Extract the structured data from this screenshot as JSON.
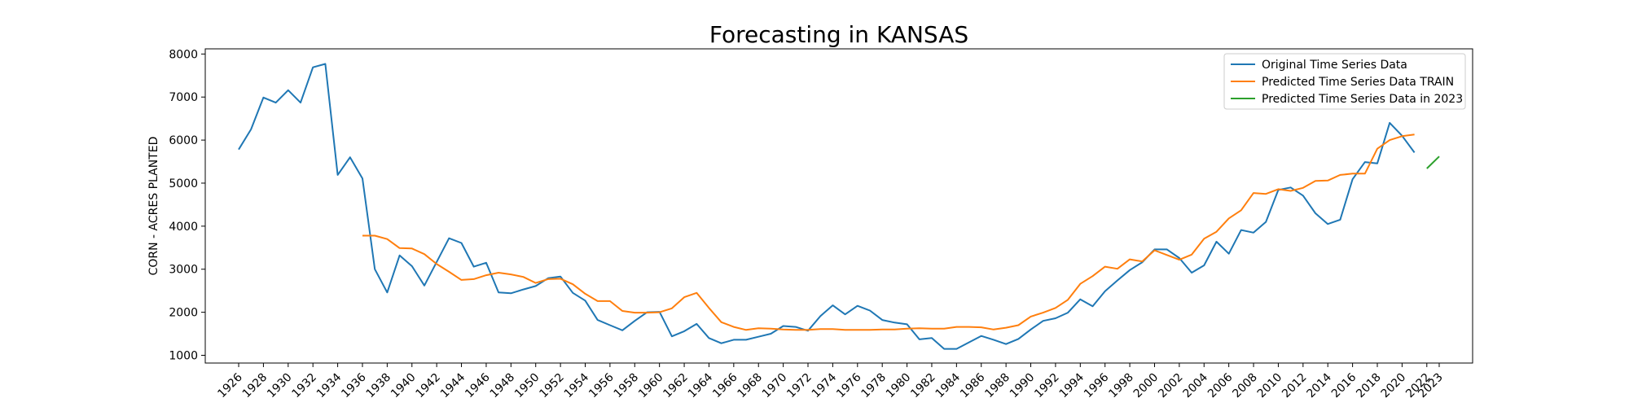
{
  "chart_data": {
    "type": "line",
    "title": "Forecasting in KANSAS",
    "xlabel": "",
    "ylabel": "CORN - ACRES PLANTED",
    "xlim": [
      1923.3,
      2025.7
    ],
    "ylim": [
      820,
      8120
    ],
    "yticks": [
      1000,
      2000,
      3000,
      4000,
      5000,
      6000,
      7000,
      8000
    ],
    "xticks": [
      "1926",
      "1928",
      "1930",
      "1932",
      "1934",
      "1936",
      "1938",
      "1940",
      "1942",
      "1944",
      "1946",
      "1948",
      "1950",
      "1952",
      "1954",
      "1956",
      "1958",
      "1960",
      "1962",
      "1964",
      "1966",
      "1968",
      "1970",
      "1972",
      "1974",
      "1976",
      "1978",
      "1980",
      "1982",
      "1984",
      "1986",
      "1988",
      "1990",
      "1992",
      "1994",
      "1996",
      "1998",
      "2000",
      "2002",
      "2004",
      "2006",
      "2008",
      "2010",
      "2012",
      "2014",
      "2016",
      "2018",
      "2020",
      "2022",
      "2023"
    ],
    "legend_position": "top-right",
    "grid": false,
    "series": [
      {
        "name": "Original Time Series Data",
        "color": "#1f77b4",
        "x": [
          1926,
          1927,
          1928,
          1929,
          1930,
          1931,
          1932,
          1933,
          1934,
          1935,
          1936,
          1937,
          1938,
          1939,
          1940,
          1941,
          1942,
          1943,
          1944,
          1945,
          1946,
          1947,
          1948,
          1949,
          1950,
          1951,
          1952,
          1953,
          1954,
          1955,
          1956,
          1957,
          1958,
          1959,
          1960,
          1961,
          1962,
          1963,
          1964,
          1965,
          1966,
          1967,
          1968,
          1969,
          1970,
          1971,
          1972,
          1973,
          1974,
          1975,
          1976,
          1977,
          1978,
          1979,
          1980,
          1981,
          1982,
          1983,
          1984,
          1985,
          1986,
          1987,
          1988,
          1989,
          1990,
          1991,
          1992,
          1993,
          1994,
          1995,
          1996,
          1997,
          1998,
          1999,
          2000,
          2001,
          2002,
          2003,
          2004,
          2005,
          2006,
          2007,
          2008,
          2009,
          2010,
          2011,
          2012,
          2013,
          2014,
          2015,
          2016,
          2017,
          2018,
          2019,
          2020,
          2021
        ],
        "values": [
          5780,
          6250,
          6990,
          6870,
          7160,
          6870,
          7690,
          7770,
          5190,
          5600,
          5110,
          3000,
          2460,
          3320,
          3070,
          2620,
          3170,
          3720,
          3610,
          3060,
          3150,
          2460,
          2440,
          2530,
          2610,
          2790,
          2830,
          2450,
          2270,
          1820,
          1700,
          1580,
          1800,
          2000,
          2010,
          1440,
          1560,
          1730,
          1400,
          1280,
          1360,
          1360,
          1430,
          1500,
          1680,
          1660,
          1570,
          1910,
          2160,
          1950,
          2150,
          2040,
          1820,
          1760,
          1720,
          1370,
          1400,
          1150,
          1150,
          1300,
          1450,
          1360,
          1260,
          1380,
          1600,
          1800,
          1860,
          1990,
          2300,
          2140,
          2490,
          2740,
          2980,
          3160,
          3460,
          3460,
          3260,
          2920,
          3090,
          3640,
          3360,
          3910,
          3850,
          4100,
          4840,
          4900,
          4710,
          4300,
          4050,
          4150,
          5090,
          5490,
          5460,
          6400,
          6100,
          5710
        ]
      },
      {
        "name": "Predicted Time Series Data TRAIN",
        "color": "#ff7f0e",
        "x": [
          1936,
          1937,
          1938,
          1939,
          1940,
          1941,
          1942,
          1943,
          1944,
          1945,
          1946,
          1947,
          1948,
          1949,
          1950,
          1951,
          1952,
          1953,
          1954,
          1955,
          1956,
          1957,
          1958,
          1959,
          1960,
          1961,
          1962,
          1963,
          1964,
          1965,
          1966,
          1967,
          1968,
          1969,
          1970,
          1971,
          1972,
          1973,
          1974,
          1975,
          1976,
          1977,
          1978,
          1979,
          1980,
          1981,
          1982,
          1983,
          1984,
          1985,
          1986,
          1987,
          1988,
          1989,
          1990,
          1991,
          1992,
          1993,
          1994,
          1995,
          1996,
          1997,
          1998,
          1999,
          2000,
          2001,
          2002,
          2003,
          2004,
          2005,
          2006,
          2007,
          2008,
          2009,
          2010,
          2011,
          2012,
          2013,
          2014,
          2015,
          2016,
          2017,
          2018,
          2019,
          2020,
          2021
        ],
        "values": [
          3780,
          3780,
          3700,
          3490,
          3480,
          3350,
          3120,
          2940,
          2750,
          2770,
          2860,
          2920,
          2880,
          2820,
          2680,
          2770,
          2780,
          2650,
          2430,
          2260,
          2260,
          2030,
          1990,
          1990,
          2000,
          2090,
          2350,
          2450,
          2100,
          1770,
          1660,
          1590,
          1630,
          1620,
          1600,
          1590,
          1590,
          1610,
          1610,
          1590,
          1590,
          1590,
          1600,
          1600,
          1620,
          1630,
          1620,
          1620,
          1660,
          1660,
          1650,
          1600,
          1640,
          1700,
          1900,
          1990,
          2100,
          2290,
          2660,
          2840,
          3060,
          3010,
          3230,
          3180,
          3440,
          3330,
          3220,
          3340,
          3710,
          3870,
          4180,
          4370,
          4770,
          4750,
          4860,
          4820,
          4890,
          5050,
          5060,
          5190,
          5220,
          5220,
          5800,
          6000,
          6090,
          6130
        ]
      },
      {
        "name": "Predicted Time Series Data in 2023",
        "color": "#2ca02c",
        "x": [
          2022,
          2023
        ],
        "values": [
          5340,
          5620
        ]
      }
    ]
  }
}
